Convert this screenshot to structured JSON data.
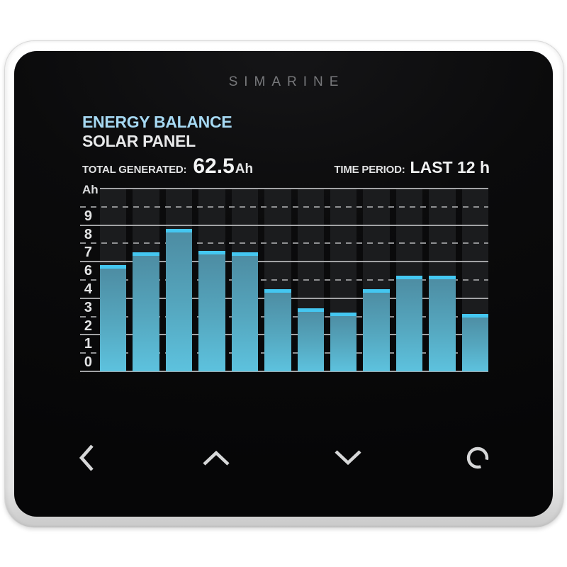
{
  "brand": "SIMARINE",
  "header": {
    "title": "ENERGY BALANCE",
    "subtitle": "SOLAR PANEL",
    "stats": {
      "total_label": "TOTAL GENERATED:",
      "total_value": "62.5",
      "total_unit": "Ah",
      "period_label": "TIME PERIOD:",
      "period_value": "LAST 12 h"
    }
  },
  "chart_data": {
    "type": "bar",
    "title": "",
    "ylabel": "Ah",
    "ylim": [
      0,
      10
    ],
    "y_tick_labels": [
      "9",
      "8",
      "7",
      "6",
      "4",
      "3",
      "2",
      "1",
      "0"
    ],
    "grid": "horizontal lines at every integer: solid at even values, dashed at odd values",
    "legend": "none",
    "bar_count": 12,
    "values": [
      5.8,
      6.5,
      7.8,
      6.6,
      6.5,
      4.5,
      3.45,
      3.2,
      4.5,
      5.25,
      5.25,
      3.15
    ],
    "values_sum_Ah": 62.5
  },
  "nav": {
    "buttons": [
      {
        "name": "back",
        "icon": "chevron-left"
      },
      {
        "name": "up",
        "icon": "chevron-up"
      },
      {
        "name": "down",
        "icon": "chevron-down"
      },
      {
        "name": "select",
        "icon": "open-circle"
      }
    ]
  },
  "colors": {
    "title_accent": "#a6d9f3",
    "bar_cap": "#44c7f1",
    "bar_body_top": "#4d8ba1",
    "bar_body_bottom": "#5dc2de",
    "column_background": "#1b1c1e",
    "grid_solid": "#a2a3a5",
    "grid_dashed": "#8f9092",
    "text_primary": "#e8e9ea",
    "brand_text": "#77787b",
    "frame": "#f2f2f2",
    "screen_background": "#0b0b0c"
  }
}
